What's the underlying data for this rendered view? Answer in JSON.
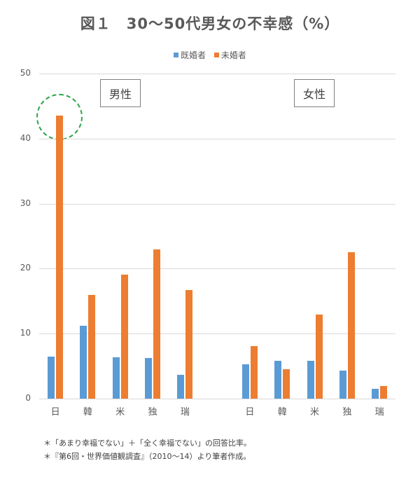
{
  "title": "図１　30〜50代男女の不幸感（%）",
  "legend": [
    {
      "label": "既婚者",
      "color": "#5b9bd5"
    },
    {
      "label": "未婚者",
      "color": "#ed7d31"
    }
  ],
  "group_labels": {
    "male": "男性",
    "female": "女性"
  },
  "notes": [
    "＊「あまり幸福でない」＋「全く幸福でない」の回答比率。",
    "＊『第6回・世界価値観調査』（2010〜14）より筆者作成。"
  ],
  "chart_data": {
    "type": "bar",
    "title": "図１　30〜50代男女の不幸感（%）",
    "xlabel": "",
    "ylabel": "",
    "ylim": [
      0,
      50
    ],
    "yticks": [
      0,
      10,
      20,
      30,
      40,
      50
    ],
    "grid": true,
    "legend_position": "top",
    "groups": [
      {
        "name": "男性",
        "categories": [
          "日",
          "韓",
          "米",
          "独",
          "瑞"
        ]
      },
      {
        "name": "女性",
        "categories": [
          "日",
          "韓",
          "米",
          "独",
          "瑞"
        ]
      }
    ],
    "categories": [
      "日",
      "韓",
      "米",
      "独",
      "瑞",
      "日",
      "韓",
      "米",
      "独",
      "瑞"
    ],
    "series": [
      {
        "name": "既婚者",
        "color": "#5b9bd5",
        "values": [
          6.5,
          11.2,
          6.4,
          6.3,
          3.7,
          5.3,
          5.8,
          5.8,
          4.3,
          1.5
        ]
      },
      {
        "name": "未婚者",
        "color": "#ed7d31",
        "values": [
          43.5,
          15.9,
          19.1,
          23.0,
          16.7,
          8.1,
          4.5,
          12.9,
          22.5,
          1.9
        ]
      }
    ],
    "annotations": [
      {
        "type": "dashed-circle",
        "color": "#2aa84a",
        "target": "男性 日 未婚者 (43.5)"
      }
    ]
  }
}
